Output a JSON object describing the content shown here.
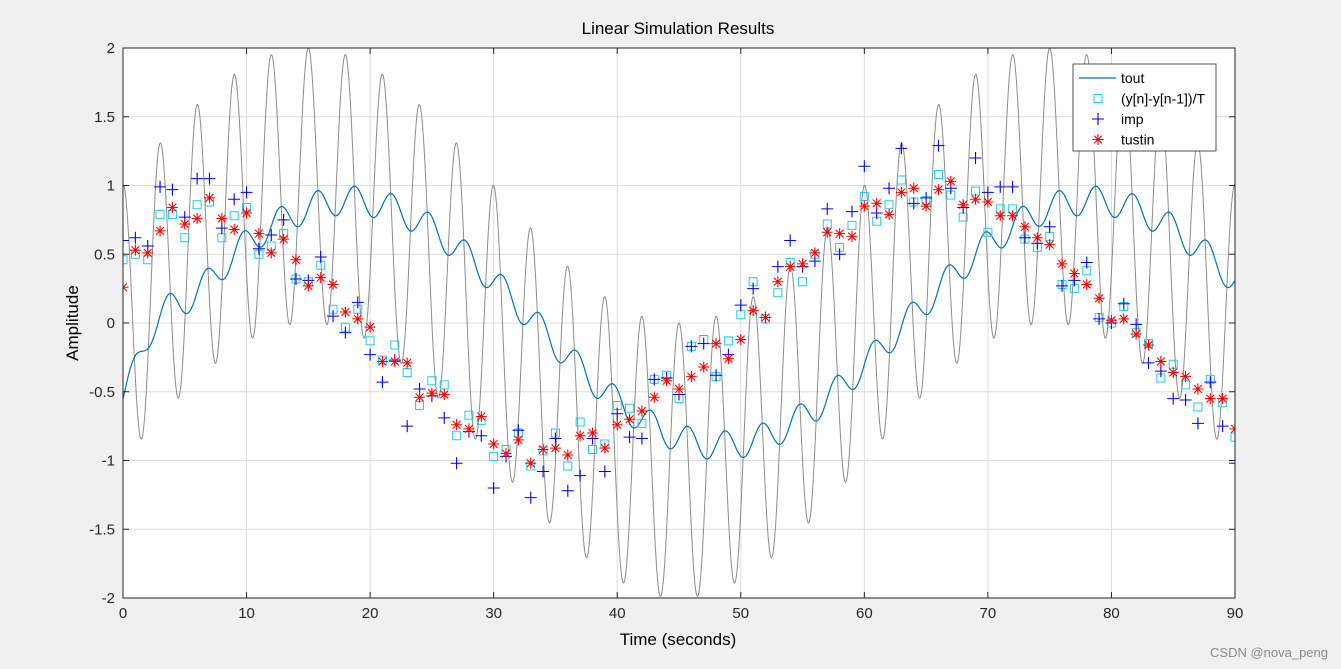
{
  "watermark": "CSDN @nova_peng",
  "chart_data": {
    "type": "line",
    "title": "Linear Simulation Results",
    "xlabel": "Time (seconds)",
    "ylabel": "Amplitude",
    "xlim": [
      0,
      90
    ],
    "ylim": [
      -2,
      2
    ],
    "xticks": [
      0,
      10,
      20,
      30,
      40,
      50,
      60,
      70,
      80,
      90
    ],
    "xtick_labels": [
      "0",
      "10",
      "20",
      "30",
      "40",
      "50",
      "60",
      "70",
      "80",
      "90"
    ],
    "yticks": [
      -2,
      -1.5,
      -1,
      -0.5,
      0,
      0.5,
      1,
      1.5,
      2
    ],
    "ytick_labels": [
      "-2",
      "-1.5",
      "-1",
      "-0.5",
      "0",
      "0.5",
      "1",
      "1.5",
      "2"
    ],
    "grid": true,
    "legend_position": "top-right",
    "input_signal": {
      "description_hidden": true,
      "color": "#8c8c8c",
      "model": "sin(2*pi*t/60) + cos(2*pi*t/3)"
    },
    "series": [
      {
        "name": "tout",
        "style": "line",
        "color": "#0072bd"
      },
      {
        "name": "(y[n]-y[n-1])/T",
        "style": "square",
        "color": "#22cce6",
        "x": [
          0,
          1,
          2,
          3,
          4,
          5,
          6,
          7,
          8,
          9,
          10,
          11,
          12,
          13,
          14,
          15,
          16,
          17,
          18,
          19,
          20,
          21,
          22,
          23,
          24,
          25,
          26,
          27,
          28,
          29,
          30,
          31,
          32,
          33,
          34,
          35,
          36,
          37,
          38,
          39,
          40,
          41,
          42,
          43,
          44,
          45,
          46,
          47,
          48,
          49,
          50,
          51,
          52,
          53,
          54,
          55,
          56,
          57,
          58,
          59,
          60,
          61,
          62,
          63,
          64,
          65,
          66,
          67,
          68,
          69,
          70,
          71,
          72,
          73,
          74,
          75,
          76,
          77,
          78,
          79,
          80,
          81,
          82,
          83,
          84,
          85,
          86,
          87,
          88,
          89,
          90
        ],
        "y": [
          0.46,
          0.5,
          0.46,
          0.79,
          0.79,
          0.62,
          0.86,
          0.88,
          0.62,
          0.78,
          0.84,
          0.5,
          0.56,
          0.65,
          0.32,
          0.3,
          0.42,
          0.1,
          -0.03,
          0.1,
          -0.13,
          -0.27,
          -0.16,
          -0.36,
          -0.6,
          -0.42,
          -0.45,
          -0.82,
          -0.67,
          -0.71,
          -0.97,
          -0.92,
          -0.8,
          -1.04,
          -0.93,
          -0.8,
          -1.04,
          -0.72,
          -0.92,
          -0.88,
          -0.6,
          -0.62,
          -0.73,
          -0.41,
          -0.38,
          -0.55,
          -0.17,
          -0.12,
          -0.39,
          -0.13,
          0.06,
          0.3,
          0.03,
          0.22,
          0.44,
          0.3,
          0.5,
          0.72,
          0.55,
          0.71,
          0.92,
          0.74,
          0.86,
          1.04,
          0.88,
          0.89,
          1.08,
          0.93,
          0.77,
          0.96,
          0.66,
          0.83,
          0.83,
          0.61,
          0.55,
          0.63,
          0.28,
          0.25,
          0.38,
          0.04,
          0.0,
          0.12,
          -0.07,
          -0.15,
          -0.4,
          -0.3,
          -0.45,
          -0.61,
          -0.41,
          -0.58,
          -0.83
        ]
      },
      {
        "name": "imp",
        "style": "plus",
        "color": "#0000ff",
        "x": [
          0,
          1,
          2,
          3,
          4,
          5,
          6,
          7,
          8,
          9,
          10,
          11,
          12,
          13,
          14,
          15,
          16,
          17,
          18,
          19,
          20,
          21,
          22,
          23,
          24,
          25,
          26,
          27,
          28,
          29,
          30,
          31,
          32,
          33,
          34,
          35,
          36,
          37,
          38,
          39,
          40,
          41,
          42,
          43,
          44,
          45,
          46,
          47,
          48,
          49,
          50,
          51,
          52,
          53,
          54,
          55,
          56,
          57,
          58,
          59,
          60,
          61,
          62,
          63,
          64,
          65,
          66,
          67,
          68,
          69,
          70,
          71,
          72,
          73,
          74,
          75,
          76,
          77,
          78,
          79,
          80,
          81,
          82,
          83,
          84,
          85,
          86,
          87,
          88,
          89,
          90
        ],
        "y": [
          0.6,
          0.62,
          0.56,
          0.99,
          0.97,
          0.77,
          1.05,
          1.05,
          0.69,
          0.9,
          0.95,
          0.54,
          0.64,
          0.75,
          0.32,
          0.31,
          0.48,
          0.05,
          -0.07,
          0.15,
          -0.23,
          -0.43,
          -0.27,
          -0.75,
          -0.48,
          -0.53,
          -0.69,
          -1.02,
          -0.79,
          -0.82,
          -1.2,
          -0.97,
          -0.78,
          -1.27,
          -1.08,
          -0.84,
          -1.22,
          -1.11,
          -0.84,
          -1.08,
          -0.66,
          -0.83,
          -0.84,
          -0.41,
          -0.4,
          -0.52,
          -0.17,
          -0.15,
          -0.38,
          -0.23,
          0.13,
          0.25,
          0.04,
          0.41,
          0.6,
          0.41,
          0.45,
          0.83,
          0.5,
          0.81,
          1.14,
          0.8,
          0.98,
          1.27,
          0.87,
          0.91,
          1.29,
          0.98,
          0.84,
          1.2,
          0.95,
          0.99,
          0.99,
          0.62,
          0.58,
          0.7,
          0.27,
          0.31,
          0.44,
          0.03,
          0.0,
          0.14,
          -0.01,
          -0.29,
          -0.35,
          -0.55,
          -0.56,
          -0.73,
          -0.43,
          -0.75,
          -1.02
        ]
      },
      {
        "name": "tustin",
        "style": "star",
        "color": "#ff0000",
        "x": [
          0,
          1,
          2,
          3,
          4,
          5,
          6,
          7,
          8,
          9,
          10,
          11,
          12,
          13,
          14,
          15,
          16,
          17,
          18,
          19,
          20,
          21,
          22,
          23,
          24,
          25,
          26,
          27,
          28,
          29,
          30,
          31,
          32,
          33,
          34,
          35,
          36,
          37,
          38,
          39,
          40,
          41,
          42,
          43,
          44,
          45,
          46,
          47,
          48,
          49,
          50,
          51,
          52,
          53,
          54,
          55,
          56,
          57,
          58,
          59,
          60,
          61,
          62,
          63,
          64,
          65,
          66,
          67,
          68,
          69,
          70,
          71,
          72,
          73,
          74,
          75,
          76,
          77,
          78,
          79,
          80,
          81,
          82,
          83,
          84,
          85,
          86,
          87,
          88,
          89,
          90
        ],
        "y": [
          0.26,
          0.53,
          0.51,
          0.67,
          0.84,
          0.72,
          0.76,
          0.91,
          0.76,
          0.68,
          0.8,
          0.65,
          0.51,
          0.61,
          0.46,
          0.27,
          0.33,
          0.28,
          0.08,
          0.03,
          -0.03,
          -0.28,
          -0.28,
          -0.29,
          -0.54,
          -0.51,
          -0.52,
          -0.74,
          -0.77,
          -0.68,
          -0.88,
          -0.95,
          -0.85,
          -1.02,
          -0.92,
          -0.91,
          -0.96,
          -0.82,
          -0.8,
          -0.91,
          -0.74,
          -0.7,
          -0.64,
          -0.54,
          -0.42,
          -0.48,
          -0.39,
          -0.32,
          -0.15,
          -0.26,
          -0.12,
          0.09,
          0.04,
          0.3,
          0.41,
          0.43,
          0.51,
          0.66,
          0.65,
          0.63,
          0.85,
          0.87,
          0.79,
          0.95,
          0.98,
          0.85,
          0.97,
          1.03,
          0.86,
          0.9,
          0.88,
          0.78,
          0.78,
          0.7,
          0.62,
          0.57,
          0.43,
          0.36,
          0.28,
          0.18,
          0.02,
          0.03,
          -0.08,
          -0.16,
          -0.28,
          -0.36,
          -0.39,
          -0.48,
          -0.55,
          -0.55,
          -0.77
        ]
      }
    ]
  }
}
